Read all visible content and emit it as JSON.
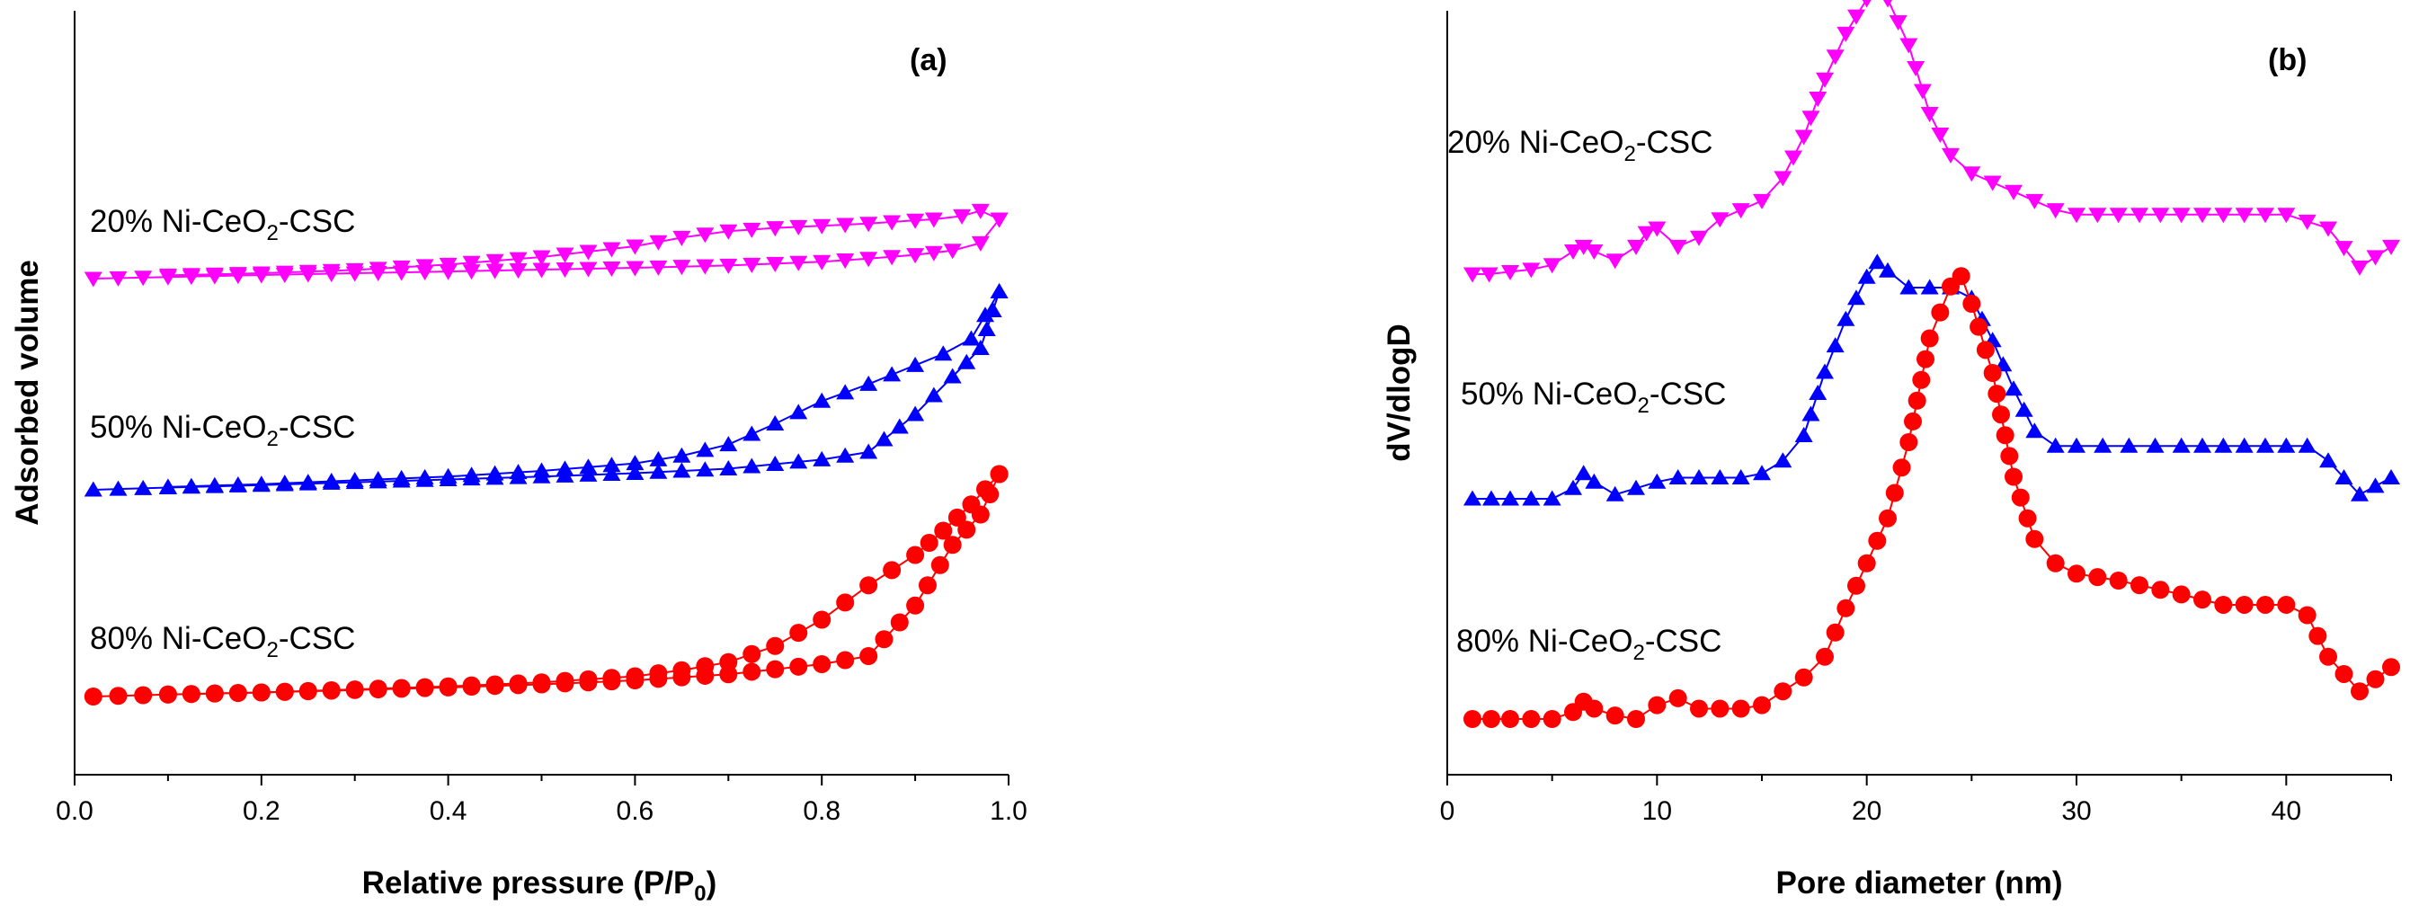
{
  "chart_data": [
    {
      "type": "line",
      "panel_label": "(a)",
      "xlabel": "Relative pressure (P/P",
      "xlabel_sub": "0",
      "xlabel_end": ")",
      "ylabel": "Adsorbed volume",
      "xlim": [
        0.0,
        1.0
      ],
      "x_ticks": [
        "0.0",
        "0.2",
        "0.4",
        "0.6",
        "0.8",
        "1.0"
      ],
      "y_ticks": false,
      "series": [
        {
          "name": "20% Ni-CeO2-CSC",
          "label_pre": "20% Ni-CeO",
          "label_sub": "2",
          "label_post": "-CSC",
          "color": "#ff00ff",
          "marker": "triangle-down",
          "offset": 2.0,
          "adsorption": [
            [
              0.02,
              0.0
            ],
            [
              0.1,
              0.015
            ],
            [
              0.2,
              0.033
            ],
            [
              0.3,
              0.05
            ],
            [
              0.4,
              0.066
            ],
            [
              0.5,
              0.083
            ],
            [
              0.6,
              0.1
            ],
            [
              0.7,
              0.122
            ],
            [
              0.8,
              0.156
            ],
            [
              0.85,
              0.185
            ],
            [
              0.9,
              0.22
            ],
            [
              0.94,
              0.26
            ],
            [
              0.97,
              0.33
            ],
            [
              0.99,
              0.55
            ]
          ],
          "desorption": [
            [
              0.99,
              0.55
            ],
            [
              0.97,
              0.63
            ],
            [
              0.95,
              0.58
            ],
            [
              0.92,
              0.55
            ],
            [
              0.9,
              0.54
            ],
            [
              0.85,
              0.51
            ],
            [
              0.8,
              0.49
            ],
            [
              0.75,
              0.47
            ],
            [
              0.7,
              0.44
            ],
            [
              0.65,
              0.38
            ],
            [
              0.6,
              0.3
            ],
            [
              0.5,
              0.2
            ],
            [
              0.4,
              0.13
            ],
            [
              0.3,
              0.08
            ],
            [
              0.2,
              0.05
            ],
            [
              0.1,
              0.03
            ]
          ]
        },
        {
          "name": "50% Ni-CeO2-CSC",
          "label_pre": "50% Ni-CeO",
          "label_sub": "2",
          "label_post": "-CSC",
          "color": "#0000ff",
          "marker": "triangle-up",
          "offset": 1.0,
          "adsorption": [
            [
              0.02,
              0.0
            ],
            [
              0.1,
              0.012
            ],
            [
              0.2,
              0.025
            ],
            [
              0.3,
              0.04
            ],
            [
              0.4,
              0.055
            ],
            [
              0.5,
              0.07
            ],
            [
              0.6,
              0.088
            ],
            [
              0.7,
              0.112
            ],
            [
              0.8,
              0.16
            ],
            [
              0.85,
              0.2
            ],
            [
              0.9,
              0.4
            ],
            [
              0.94,
              0.6
            ],
            [
              0.97,
              0.75
            ],
            [
              0.99,
              1.05
            ]
          ],
          "desorption": [
            [
              0.99,
              1.05
            ],
            [
              0.96,
              0.8
            ],
            [
              0.93,
              0.72
            ],
            [
              0.9,
              0.66
            ],
            [
              0.85,
              0.56
            ],
            [
              0.8,
              0.47
            ],
            [
              0.75,
              0.35
            ],
            [
              0.7,
              0.24
            ],
            [
              0.65,
              0.18
            ],
            [
              0.6,
              0.14
            ],
            [
              0.5,
              0.1
            ],
            [
              0.4,
              0.07
            ],
            [
              0.3,
              0.05
            ],
            [
              0.2,
              0.03
            ],
            [
              0.1,
              0.015
            ]
          ]
        },
        {
          "name": "80% Ni-CeO2-CSC",
          "label_pre": "80% Ni-CeO",
          "label_sub": "2",
          "label_post": "-CSC",
          "color": "#ff0000",
          "marker": "circle",
          "offset": 0.0,
          "adsorption": [
            [
              0.02,
              0.0
            ],
            [
              0.1,
              0.01
            ],
            [
              0.2,
              0.02
            ],
            [
              0.3,
              0.032
            ],
            [
              0.4,
              0.045
            ],
            [
              0.5,
              0.06
            ],
            [
              0.6,
              0.08
            ],
            [
              0.7,
              0.11
            ],
            [
              0.8,
              0.16
            ],
            [
              0.85,
              0.2
            ],
            [
              0.9,
              0.45
            ],
            [
              0.94,
              0.75
            ],
            [
              0.97,
              0.9
            ],
            [
              0.99,
              1.1
            ]
          ],
          "desorption": [
            [
              0.99,
              1.1
            ],
            [
              0.96,
              0.95
            ],
            [
              0.93,
              0.82
            ],
            [
              0.9,
              0.7
            ],
            [
              0.85,
              0.55
            ],
            [
              0.8,
              0.38
            ],
            [
              0.75,
              0.25
            ],
            [
              0.7,
              0.17
            ],
            [
              0.65,
              0.13
            ],
            [
              0.6,
              0.1
            ],
            [
              0.5,
              0.07
            ],
            [
              0.4,
              0.05
            ],
            [
              0.3,
              0.035
            ],
            [
              0.2,
              0.02
            ],
            [
              0.1,
              0.01
            ]
          ]
        }
      ]
    },
    {
      "type": "line",
      "panel_label": "(b)",
      "xlabel": "Pore diameter (nm)",
      "ylabel": "dV/dlogD",
      "xlim": [
        0,
        45
      ],
      "x_ticks": [
        "0",
        "10",
        "20",
        "30",
        "40"
      ],
      "y_ticks": false,
      "series": [
        {
          "name": "20% Ni-CeO2-CSC",
          "label_pre": "20% Ni-CeO",
          "label_sub": "2",
          "label_post": "-CSC",
          "color": "#ff00ff",
          "marker": "triangle-down",
          "offset": 2.0,
          "points": [
            [
              1.2,
              0.0
            ],
            [
              2,
              0.0
            ],
            [
              3,
              0.01
            ],
            [
              4,
              0.02
            ],
            [
              5,
              0.04
            ],
            [
              6,
              0.1
            ],
            [
              6.5,
              0.12
            ],
            [
              7,
              0.1
            ],
            [
              8,
              0.06
            ],
            [
              9,
              0.12
            ],
            [
              9.5,
              0.18
            ],
            [
              10,
              0.2
            ],
            [
              11,
              0.12
            ],
            [
              12,
              0.16
            ],
            [
              13,
              0.24
            ],
            [
              14,
              0.28
            ],
            [
              15,
              0.32
            ],
            [
              16,
              0.42
            ],
            [
              17,
              0.6
            ],
            [
              18,
              0.85
            ],
            [
              19,
              1.05
            ],
            [
              20,
              1.2
            ],
            [
              20.5,
              1.25
            ],
            [
              21,
              1.2
            ],
            [
              22,
              1.0
            ],
            [
              23,
              0.7
            ],
            [
              24,
              0.52
            ],
            [
              25,
              0.44
            ],
            [
              26,
              0.4
            ],
            [
              27,
              0.36
            ],
            [
              28,
              0.32
            ],
            [
              29,
              0.28
            ],
            [
              30,
              0.26
            ],
            [
              33,
              0.26
            ],
            [
              37,
              0.26
            ],
            [
              40,
              0.26
            ],
            [
              42,
              0.2
            ],
            [
              43.5,
              0.03
            ],
            [
              45,
              0.12
            ]
          ]
        },
        {
          "name": "50% Ni-CeO2-CSC",
          "label_pre": "50% Ni-CeO",
          "label_sub": "2",
          "label_post": "-CSC",
          "color": "#0000ff",
          "marker": "triangle-up",
          "offset": 1.0,
          "points": [
            [
              1.2,
              0.0
            ],
            [
              3,
              0.0
            ],
            [
              5,
              0.0
            ],
            [
              6,
              0.05
            ],
            [
              6.5,
              0.12
            ],
            [
              7,
              0.08
            ],
            [
              8,
              0.02
            ],
            [
              9,
              0.05
            ],
            [
              10,
              0.08
            ],
            [
              11,
              0.1
            ],
            [
              12,
              0.1
            ],
            [
              13,
              0.1
            ],
            [
              14,
              0.1
            ],
            [
              15,
              0.12
            ],
            [
              16,
              0.18
            ],
            [
              17,
              0.3
            ],
            [
              18,
              0.6
            ],
            [
              19,
              0.85
            ],
            [
              20,
              1.05
            ],
            [
              20.5,
              1.12
            ],
            [
              21,
              1.08
            ],
            [
              22,
              1.0
            ],
            [
              23,
              1.0
            ],
            [
              24,
              1.0
            ],
            [
              25,
              0.95
            ],
            [
              26,
              0.75
            ],
            [
              27,
              0.52
            ],
            [
              28,
              0.32
            ],
            [
              29,
              0.25
            ],
            [
              30,
              0.25
            ],
            [
              35,
              0.25
            ],
            [
              39,
              0.25
            ],
            [
              41,
              0.25
            ],
            [
              42,
              0.18
            ],
            [
              43.5,
              0.02
            ],
            [
              45,
              0.1
            ]
          ]
        },
        {
          "name": "80% Ni-CeO2-CSC",
          "label_pre": "80% Ni-CeO",
          "label_sub": "2",
          "label_post": "-CSC",
          "color": "#ff0000",
          "marker": "circle",
          "offset": 0.0,
          "points": [
            [
              1.2,
              0.0
            ],
            [
              3,
              0.0
            ],
            [
              5,
              0.0
            ],
            [
              6,
              0.02
            ],
            [
              6.5,
              0.05
            ],
            [
              7,
              0.03
            ],
            [
              8,
              0.01
            ],
            [
              9,
              0.0
            ],
            [
              10,
              0.04
            ],
            [
              11,
              0.06
            ],
            [
              12,
              0.03
            ],
            [
              13,
              0.03
            ],
            [
              14,
              0.03
            ],
            [
              15,
              0.04
            ],
            [
              16,
              0.08
            ],
            [
              17,
              0.12
            ],
            [
              18,
              0.18
            ],
            [
              19,
              0.32
            ],
            [
              20,
              0.45
            ],
            [
              21,
              0.58
            ],
            [
              22,
              0.8
            ],
            [
              23,
              1.1
            ],
            [
              24,
              1.25
            ],
            [
              24.5,
              1.28
            ],
            [
              25,
              1.2
            ],
            [
              26,
              1.0
            ],
            [
              27,
              0.7
            ],
            [
              28,
              0.52
            ],
            [
              29,
              0.45
            ],
            [
              30,
              0.42
            ],
            [
              32,
              0.4
            ],
            [
              35,
              0.36
            ],
            [
              37,
              0.33
            ],
            [
              40,
              0.33
            ],
            [
              41,
              0.3
            ],
            [
              42,
              0.18
            ],
            [
              43.5,
              0.08
            ],
            [
              45,
              0.15
            ]
          ]
        }
      ]
    }
  ]
}
